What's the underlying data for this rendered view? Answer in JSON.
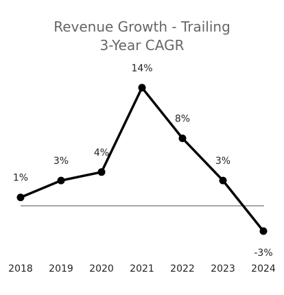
{
  "chart_data": {
    "type": "line",
    "title_lines": [
      "Revenue Growth - Trailing",
      "3-Year CAGR"
    ],
    "xlabel": "",
    "ylabel": "",
    "categories": [
      "2018",
      "2019",
      "2020",
      "2021",
      "2022",
      "2023",
      "2024"
    ],
    "series": [
      {
        "values": [
          1,
          3,
          4,
          14,
          8,
          3,
          -3
        ],
        "data_labels": [
          "1%",
          "3%",
          "4%",
          "14%",
          "8%",
          "3%",
          "-3%"
        ]
      }
    ],
    "ylim": [
      -4,
      15
    ],
    "grid": false,
    "legend": "none",
    "colors": {
      "line": "#000000",
      "baseline": "#888888",
      "title": "#666666",
      "text": "#222222"
    }
  }
}
